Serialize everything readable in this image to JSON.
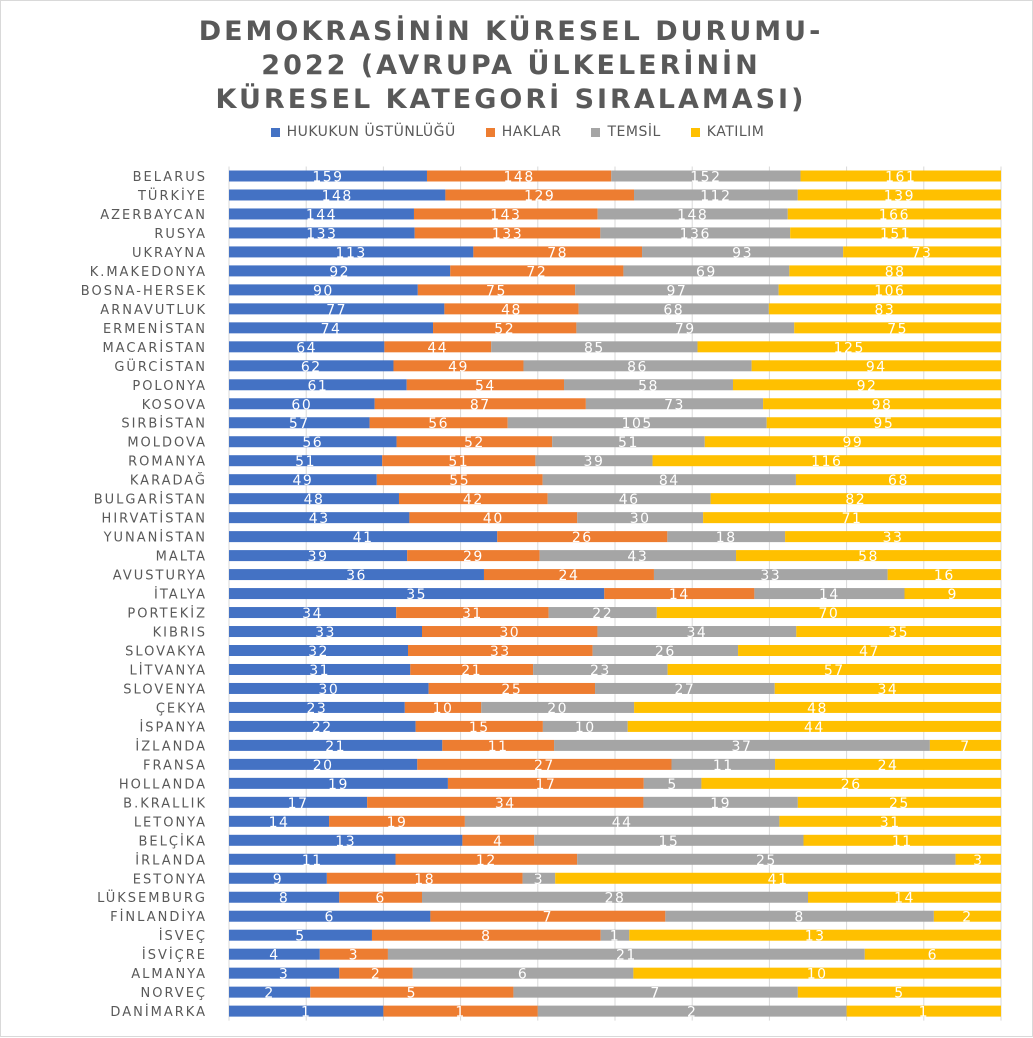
{
  "chart_data": {
    "type": "bar",
    "orientation": "horizontal",
    "stacked": "percent",
    "title_lines": [
      "DEMOKRASİNİN KÜRESEL DURUMU-",
      "2022 (AVRUPA ÜLKELERİNİN",
      "KÜRESEL KATEGORİ SIRALAMASI)"
    ],
    "legend_position": "top",
    "grid": "vertical",
    "categories": [
      "BELARUS",
      "TÜRKİYE",
      "AZERBAYCAN",
      "RUSYA",
      "UKRAYNA",
      "K.MAKEDONYA",
      "BOSNA-HERSEK",
      "ARNAVUTLUK",
      "ERMENİSTAN",
      "MACARİSTAN",
      "GÜRCİSTAN",
      "POLONYA",
      "KOSOVA",
      "SIRBİSTAN",
      "MOLDOVA",
      "ROMANYA",
      "KARADAĞ",
      "BULGARİSTAN",
      "HIRVATİSTAN",
      "YUNANİSTAN",
      "MALTA",
      "AVUSTURYA",
      "İTALYA",
      "PORTEKİZ",
      "KIBRIS",
      "SLOVAKYA",
      "LİTVANYA",
      "SLOVENYA",
      "ÇEKYA",
      "İSPANYA",
      "İZLANDA",
      "FRANSA",
      "HOLLANDA",
      "B.KRALLIK",
      "LETONYA",
      "BELÇİKA",
      "İRLANDA",
      "ESTONYA",
      "LÜKSEMBURG",
      "FİNLANDİYA",
      "İSVEÇ",
      "İSVİÇRE",
      "ALMANYA",
      "NORVEÇ",
      "DANİMARKA"
    ],
    "series": [
      {
        "name": "HUKUKUN ÜSTÜNLÜĞÜ",
        "color": "#4472c4",
        "values": [
          159,
          148,
          144,
          133,
          113,
          92,
          90,
          77,
          74,
          64,
          62,
          61,
          60,
          57,
          56,
          51,
          49,
          48,
          43,
          41,
          39,
          36,
          35,
          34,
          33,
          32,
          31,
          30,
          23,
          22,
          21,
          20,
          19,
          17,
          14,
          13,
          11,
          9,
          8,
          6,
          5,
          4,
          3,
          2,
          1
        ]
      },
      {
        "name": "HAKLAR",
        "color": "#ed7d31",
        "values": [
          148,
          129,
          143,
          133,
          78,
          72,
          75,
          48,
          52,
          44,
          49,
          54,
          87,
          56,
          52,
          51,
          55,
          42,
          40,
          26,
          29,
          24,
          14,
          31,
          30,
          33,
          21,
          25,
          10,
          15,
          11,
          27,
          17,
          34,
          19,
          4,
          12,
          18,
          6,
          7,
          8,
          3,
          2,
          5,
          1
        ]
      },
      {
        "name": "TEMSİL",
        "color": "#a5a5a5",
        "values": [
          152,
          112,
          148,
          136,
          93,
          69,
          97,
          68,
          79,
          85,
          86,
          58,
          73,
          105,
          51,
          39,
          84,
          46,
          30,
          18,
          43,
          33,
          14,
          22,
          34,
          26,
          23,
          27,
          20,
          10,
          37,
          11,
          5,
          19,
          44,
          15,
          25,
          3,
          28,
          8,
          1,
          21,
          6,
          7,
          2
        ]
      },
      {
        "name": "KATILIM",
        "color": "#ffc000",
        "values": [
          161,
          139,
          166,
          151,
          73,
          88,
          106,
          83,
          75,
          125,
          94,
          92,
          98,
          95,
          99,
          116,
          68,
          82,
          71,
          33,
          58,
          16,
          9,
          70,
          35,
          47,
          57,
          34,
          48,
          44,
          7,
          24,
          26,
          25,
          31,
          11,
          3,
          41,
          14,
          2,
          13,
          6,
          10,
          5,
          1
        ]
      }
    ]
  }
}
